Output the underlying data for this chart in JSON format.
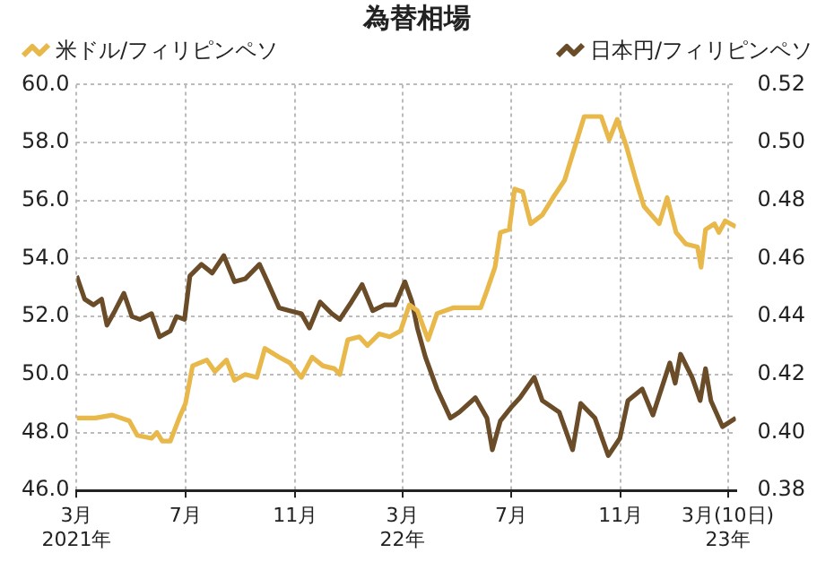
{
  "chart_data": {
    "type": "line",
    "title": "為替相場",
    "legend": "top",
    "grid": true,
    "line_style": "solid",
    "marker": "none",
    "xlim": [
      "2021-03-01",
      "2023-03-10"
    ],
    "xticks": [
      {
        "value": "2021-03-01",
        "label": "3月\n2021年"
      },
      {
        "value": "2021-07-01",
        "label": "7月"
      },
      {
        "value": "2021-11-01",
        "label": "11月"
      },
      {
        "value": "2022-03-01",
        "label": "3月\n22年"
      },
      {
        "value": "2022-07-01",
        "label": "7月"
      },
      {
        "value": "2022-11-01",
        "label": "11月"
      },
      {
        "value": "2023-03-01",
        "label": "3月(10日)\n23年"
      }
    ],
    "ylim": [
      46,
      60
    ],
    "yticks": [
      {
        "value": 46,
        "label": "46.0"
      },
      {
        "value": 48,
        "label": "48.0"
      },
      {
        "value": 50,
        "label": "50.0"
      },
      {
        "value": 52,
        "label": "52.0"
      },
      {
        "value": 54,
        "label": "54.0"
      },
      {
        "value": 56,
        "label": "56.0"
      },
      {
        "value": 58,
        "label": "58.0"
      },
      {
        "value": 60,
        "label": "60.0"
      }
    ],
    "y2lim": [
      0.38,
      0.52
    ],
    "y2ticks": [
      0.38,
      {
        "value": 0.4,
        "label": "0.40"
      },
      0.42,
      0.44,
      0.46,
      0.48,
      {
        "value": 0.5,
        "label": "0.50"
      },
      0.52
    ],
    "series": [
      {
        "name": "米ドル/フィリピンペソ",
        "color": "#e8b84a",
        "x": [
          "2021-03-01",
          "2021-03-22",
          "2021-04-10",
          "2021-04-29",
          "2021-05-08",
          "2021-05-24",
          "2021-05-30",
          "2021-06-05",
          "2021-06-14",
          "2021-06-24",
          "2021-07-01",
          "2021-07-09",
          "2021-07-25",
          "2021-08-03",
          "2021-08-16",
          "2021-08-25",
          "2021-09-06",
          "2021-09-19",
          "2021-09-28",
          "2021-10-14",
          "2021-10-26",
          "2021-11-08",
          "2021-11-20",
          "2021-12-02",
          "2021-12-15",
          "2021-12-21",
          "2021-12-30",
          "2022-01-12",
          "2022-01-21",
          "2022-02-03",
          "2022-02-15",
          "2022-02-27",
          "2022-03-09",
          "2022-03-18",
          "2022-03-30",
          "2022-04-09",
          "2022-04-27",
          "2022-05-16",
          "2022-05-28",
          "2022-06-04",
          "2022-06-13",
          "2022-06-19",
          "2022-06-29",
          "2022-07-05",
          "2022-07-14",
          "2022-07-23",
          "2022-08-05",
          "2022-08-17",
          "2022-08-30",
          "2022-09-14",
          "2022-09-21",
          "2022-10-10",
          "2022-10-19",
          "2022-10-28",
          "2022-11-07",
          "2022-11-18",
          "2022-11-27",
          "2022-12-14",
          "2022-12-23",
          "2023-01-02",
          "2023-01-13",
          "2023-01-26",
          "2023-01-30",
          "2023-02-04",
          "2023-02-14",
          "2023-02-19",
          "2023-02-26",
          "2023-03-10"
        ],
        "values": [
          48.5,
          48.5,
          48.6,
          48.4,
          47.9,
          47.8,
          48.0,
          47.7,
          47.7,
          48.5,
          49.0,
          50.3,
          50.5,
          50.1,
          50.5,
          49.8,
          50.0,
          49.9,
          50.9,
          50.6,
          50.4,
          49.9,
          50.6,
          50.3,
          50.2,
          50.0,
          51.2,
          51.3,
          51.0,
          51.4,
          51.3,
          51.5,
          52.4,
          52.2,
          51.2,
          52.1,
          52.3,
          52.3,
          52.3,
          52.9,
          53.7,
          54.9,
          55.0,
          56.4,
          56.3,
          55.2,
          55.5,
          56.1,
          56.7,
          58.2,
          58.9,
          58.9,
          58.1,
          58.8,
          57.9,
          56.7,
          55.8,
          55.2,
          56.1,
          54.9,
          54.5,
          54.4,
          53.7,
          55.0,
          55.2,
          54.9,
          55.3,
          55.1
        ]
      },
      {
        "name": "日本円/フィリピンペソ",
        "color": "#6b4c28",
        "axis": "y2",
        "x": [
          "2021-03-01",
          "2021-03-10",
          "2021-03-20",
          "2021-03-29",
          "2021-04-04",
          "2021-04-13",
          "2021-04-23",
          "2021-05-02",
          "2021-05-11",
          "2021-05-24",
          "2021-06-02",
          "2021-06-14",
          "2021-06-21",
          "2021-06-30",
          "2021-07-06",
          "2021-07-19",
          "2021-07-31",
          "2021-08-13",
          "2021-08-25",
          "2021-09-06",
          "2021-09-22",
          "2021-10-01",
          "2021-10-14",
          "2021-10-26",
          "2021-11-08",
          "2021-11-17",
          "2021-11-29",
          "2021-12-12",
          "2021-12-21",
          "2022-01-03",
          "2022-01-15",
          "2022-01-27",
          "2022-02-09",
          "2022-02-21",
          "2022-03-04",
          "2022-03-12",
          "2022-03-18",
          "2022-03-27",
          "2022-04-09",
          "2022-04-24",
          "2022-05-04",
          "2022-05-22",
          "2022-06-04",
          "2022-06-10",
          "2022-06-19",
          "2022-07-02",
          "2022-07-11",
          "2022-07-27",
          "2022-08-05",
          "2022-08-24",
          "2022-09-08",
          "2022-09-17",
          "2022-10-03",
          "2022-10-18",
          "2022-10-31",
          "2022-11-09",
          "2022-11-25",
          "2022-12-07",
          "2022-12-26",
          "2023-01-01",
          "2023-01-07",
          "2023-01-20",
          "2023-01-29",
          "2023-02-04",
          "2023-02-10",
          "2023-02-23",
          "2023-03-10"
        ],
        "values": [
          0.454,
          0.446,
          0.444,
          0.446,
          0.437,
          0.442,
          0.448,
          0.44,
          0.439,
          0.441,
          0.433,
          0.435,
          0.44,
          0.439,
          0.454,
          0.458,
          0.455,
          0.461,
          0.452,
          0.453,
          0.458,
          0.452,
          0.443,
          0.442,
          0.441,
          0.436,
          0.445,
          0.441,
          0.439,
          0.445,
          0.451,
          0.442,
          0.444,
          0.444,
          0.452,
          0.445,
          0.436,
          0.426,
          0.415,
          0.405,
          0.407,
          0.412,
          0.405,
          0.394,
          0.404,
          0.409,
          0.412,
          0.419,
          0.411,
          0.407,
          0.394,
          0.41,
          0.405,
          0.392,
          0.398,
          0.411,
          0.415,
          0.406,
          0.424,
          0.417,
          0.427,
          0.419,
          0.411,
          0.422,
          0.411,
          0.402,
          0.405
        ]
      }
    ]
  }
}
